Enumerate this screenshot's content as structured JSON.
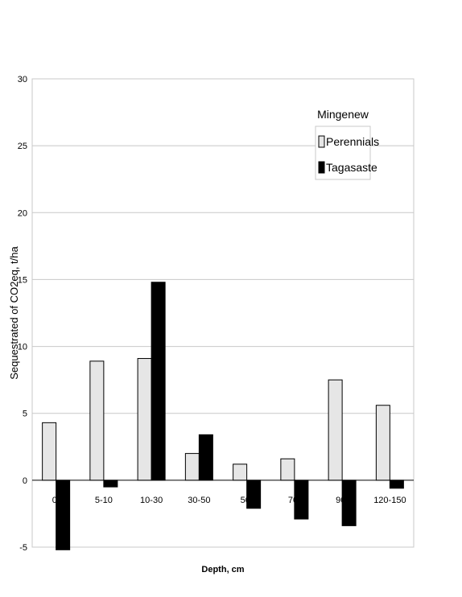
{
  "chart_data": {
    "type": "bar",
    "title": "",
    "xlabel": "Depth, cm",
    "ylabel": "Sequestrated of CO2eq, t/ha",
    "ylim": [
      -5,
      30
    ],
    "yticks": [
      -5,
      0,
      5,
      10,
      15,
      20,
      25,
      30
    ],
    "grid": "horizontal",
    "legend": {
      "title": "Mingenew",
      "placement": "top-right"
    },
    "categories": [
      "0-5",
      "5-10",
      "10-30",
      "30-50",
      "50-70",
      "70-90",
      "90-120",
      "120-150"
    ],
    "category_labels": [
      "0-",
      "5-10",
      "10-30",
      "30-50",
      "50-",
      "70-",
      "90-",
      "120-150"
    ],
    "series": [
      {
        "name": "Perennials",
        "color": "#e6e6e6",
        "values": [
          4.3,
          8.9,
          9.1,
          2.0,
          1.2,
          1.6,
          7.5,
          5.6
        ]
      },
      {
        "name": "Tagasaste",
        "color": "#000000",
        "values": [
          -5.2,
          -0.5,
          14.8,
          3.4,
          -2.1,
          -2.9,
          -3.4,
          -0.6
        ]
      }
    ]
  }
}
